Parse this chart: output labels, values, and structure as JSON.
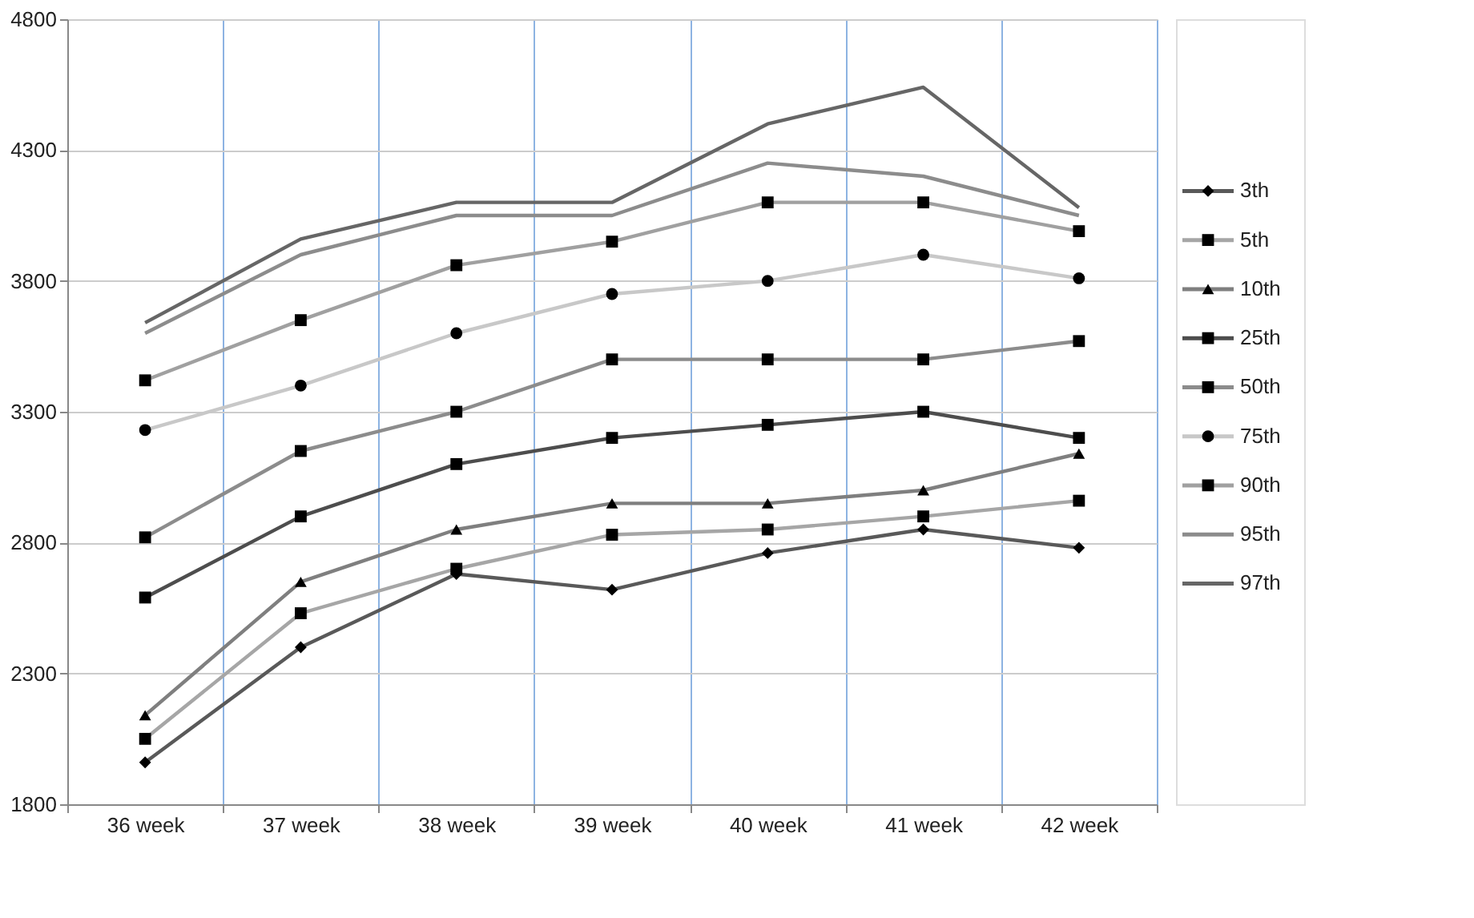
{
  "chart_data": {
    "type": "line",
    "categories": [
      "36 week",
      "37 week",
      "38 week",
      "39 week",
      "40 week",
      "41 week",
      "42 week"
    ],
    "ylim": [
      1800,
      4800
    ],
    "yticks": [
      1800,
      2300,
      2800,
      3300,
      3800,
      4300,
      4800
    ],
    "grid": true,
    "legend": "right",
    "line_style": "solid",
    "series": [
      {
        "name": "3th",
        "color": "#595959",
        "marker": "diamond",
        "values": [
          1960,
          2400,
          2680,
          2620,
          2760,
          2850,
          2780
        ]
      },
      {
        "name": "5th",
        "color": "#a6a6a6",
        "marker": "square",
        "values": [
          2050,
          2530,
          2700,
          2830,
          2850,
          2900,
          2960
        ]
      },
      {
        "name": "10th",
        "color": "#7f7f7f",
        "marker": "triangle",
        "values": [
          2140,
          2650,
          2850,
          2950,
          2950,
          3000,
          3140
        ]
      },
      {
        "name": "25th",
        "color": "#4d4d4d",
        "marker": "square",
        "values": [
          2590,
          2900,
          3100,
          3200,
          3250,
          3300,
          3200
        ]
      },
      {
        "name": "50th",
        "color": "#8c8c8c",
        "marker": "square",
        "values": [
          2820,
          3150,
          3300,
          3500,
          3500,
          3500,
          3570
        ]
      },
      {
        "name": "75th",
        "color": "#c8c8c8",
        "marker": "circle",
        "values": [
          3230,
          3400,
          3600,
          3750,
          3800,
          3900,
          3810
        ]
      },
      {
        "name": "90th",
        "color": "#a0a0a0",
        "marker": "square",
        "values": [
          3420,
          3650,
          3860,
          3950,
          4100,
          4100,
          3990
        ]
      },
      {
        "name": "95th",
        "color": "#8c8c8c",
        "marker": "none",
        "values": [
          3600,
          3900,
          4050,
          4050,
          4250,
          4200,
          4050
        ]
      },
      {
        "name": "97th",
        "color": "#666666",
        "marker": "none",
        "values": [
          3640,
          3960,
          4100,
          4100,
          4400,
          4540,
          4080
        ]
      }
    ]
  }
}
